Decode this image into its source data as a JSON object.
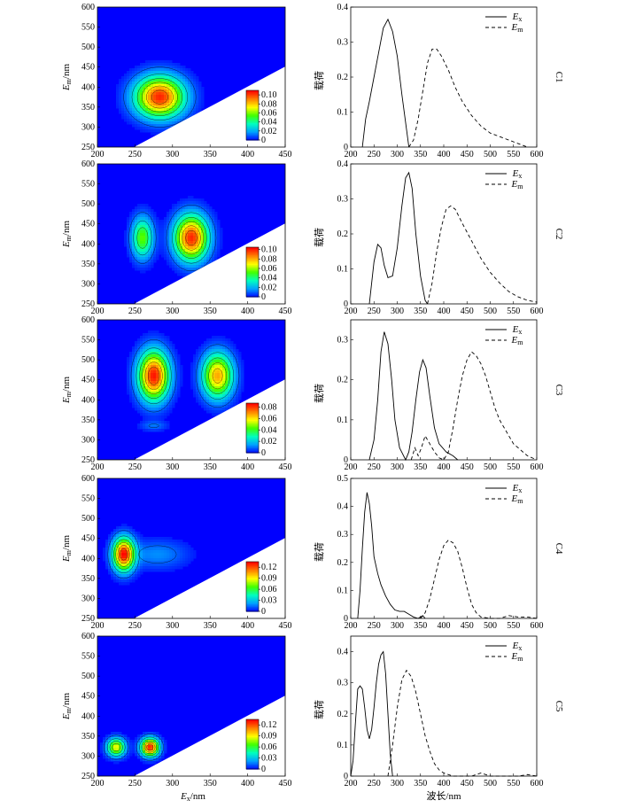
{
  "colors": {
    "background_blue": "#2040ff",
    "contour_line": "#000000"
  },
  "colorbar_stops": [
    "#0000ff",
    "#00a0ff",
    "#00ffc0",
    "#40ff00",
    "#ffff00",
    "#ff8000",
    "#ff0000"
  ],
  "panel_labels": [
    "C1",
    "C2",
    "C3",
    "C4",
    "C5"
  ],
  "labels": {
    "eem_xlabel": "Ex/nm",
    "eem_ylabel": "Em/nm",
    "loading_ylabel": "载荷",
    "loading_xlabel": "波长/nm"
  },
  "legend": {
    "ex": "Ex",
    "em": "Em"
  },
  "chart_data": [
    {
      "type": "heatmap",
      "name": "C1-eem",
      "xlim": [
        200,
        450
      ],
      "ylim": [
        250,
        600
      ],
      "xticks": [
        200,
        250,
        300,
        350,
        400,
        450
      ],
      "yticks": [
        250,
        300,
        350,
        400,
        450,
        500,
        550,
        600
      ],
      "colorbar": {
        "max": 0.11,
        "ticks": [
          "0",
          "0.02",
          "0.04",
          "0.06",
          "0.08",
          "0.10"
        ],
        "values": [
          0,
          0.02,
          0.04,
          0.06,
          0.08,
          0.1
        ]
      },
      "peaks": [
        {
          "ex": 283,
          "em": 375,
          "value": 0.105,
          "sx": 32,
          "sy": 50
        }
      ]
    },
    {
      "type": "line",
      "name": "C1-loading",
      "xlim": [
        200,
        600
      ],
      "ylim": [
        0,
        0.4
      ],
      "xticks": [
        200,
        250,
        300,
        350,
        400,
        450,
        500,
        550,
        600
      ],
      "yticks": [
        0,
        0.1,
        0.2,
        0.3,
        0.4
      ],
      "ytick_labels": [
        "0",
        "0.1",
        "0.2",
        "0.3",
        "0.4"
      ],
      "ex": {
        "x": [
          225,
          232,
          240,
          250,
          260,
          270,
          280,
          290,
          300,
          310,
          320,
          325
        ],
        "y": [
          0,
          0.08,
          0.13,
          0.2,
          0.27,
          0.34,
          0.365,
          0.33,
          0.26,
          0.15,
          0.05,
          0
        ]
      },
      "em": {
        "x": [
          325,
          335,
          345,
          355,
          365,
          375,
          385,
          395,
          410,
          425,
          440,
          460,
          480,
          500,
          520,
          540,
          560,
          580
        ],
        "y": [
          0,
          0.02,
          0.08,
          0.16,
          0.24,
          0.28,
          0.28,
          0.26,
          0.22,
          0.17,
          0.13,
          0.09,
          0.06,
          0.04,
          0.03,
          0.02,
          0.01,
          0
        ]
      }
    },
    {
      "type": "heatmap",
      "name": "C2-eem",
      "xlim": [
        200,
        450
      ],
      "ylim": [
        250,
        600
      ],
      "xticks": [
        200,
        250,
        300,
        350,
        400,
        450
      ],
      "yticks": [
        250,
        300,
        350,
        400,
        450,
        500,
        550,
        600
      ],
      "colorbar": {
        "max": 0.105,
        "ticks": [
          "0",
          "0.02",
          "0.04",
          "0.06",
          "0.08",
          "0.10"
        ],
        "values": [
          0,
          0.02,
          0.04,
          0.06,
          0.08,
          0.1
        ]
      },
      "peaks": [
        {
          "ex": 325,
          "em": 415,
          "value": 0.1,
          "sx": 22,
          "sy": 55
        },
        {
          "ex": 260,
          "em": 415,
          "value": 0.055,
          "sx": 14,
          "sy": 50
        }
      ]
    },
    {
      "type": "line",
      "name": "C2-loading",
      "xlim": [
        200,
        600
      ],
      "ylim": [
        0,
        0.4
      ],
      "xticks": [
        200,
        250,
        300,
        350,
        400,
        450,
        500,
        550,
        600
      ],
      "yticks": [
        0,
        0.1,
        0.2,
        0.3,
        0.4
      ],
      "ytick_labels": [
        "0",
        "0.1",
        "0.2",
        "0.3",
        "0.4"
      ],
      "ex": {
        "x": [
          240,
          245,
          250,
          258,
          265,
          272,
          280,
          290,
          300,
          310,
          318,
          325,
          332,
          340,
          350,
          360,
          365
        ],
        "y": [
          0,
          0.06,
          0.12,
          0.17,
          0.16,
          0.11,
          0.075,
          0.08,
          0.16,
          0.28,
          0.36,
          0.375,
          0.33,
          0.2,
          0.08,
          0.01,
          0
        ]
      },
      "em": {
        "x": [
          365,
          375,
          385,
          395,
          405,
          415,
          425,
          440,
          460,
          480,
          500,
          520,
          540,
          560,
          580,
          600
        ],
        "y": [
          0,
          0.06,
          0.15,
          0.22,
          0.27,
          0.28,
          0.27,
          0.23,
          0.18,
          0.13,
          0.09,
          0.06,
          0.035,
          0.02,
          0.01,
          0.005
        ]
      }
    },
    {
      "type": "heatmap",
      "name": "C3-eem",
      "xlim": [
        200,
        450
      ],
      "ylim": [
        250,
        600
      ],
      "xticks": [
        200,
        250,
        300,
        350,
        400,
        450
      ],
      "yticks": [
        250,
        300,
        350,
        400,
        450,
        500,
        550,
        600
      ],
      "colorbar": {
        "max": 0.087,
        "ticks": [
          "0",
          "0.02",
          "0.04",
          "0.06",
          "0.08"
        ],
        "values": [
          0,
          0.02,
          0.04,
          0.06,
          0.08
        ]
      },
      "peaks": [
        {
          "ex": 275,
          "em": 460,
          "value": 0.085,
          "sx": 20,
          "sy": 60
        },
        {
          "ex": 360,
          "em": 460,
          "value": 0.068,
          "sx": 20,
          "sy": 55
        },
        {
          "ex": 275,
          "em": 335,
          "value": 0.01,
          "sx": 18,
          "sy": 12
        }
      ]
    },
    {
      "type": "line",
      "name": "C3-loading",
      "xlim": [
        200,
        600
      ],
      "ylim": [
        0,
        0.35
      ],
      "xticks": [
        200,
        250,
        300,
        350,
        400,
        450,
        500,
        550,
        600
      ],
      "yticks": [
        0,
        0.1,
        0.2,
        0.3
      ],
      "ytick_labels": [
        "0",
        "0.1",
        "0.2",
        "0.3"
      ],
      "ex": {
        "x": [
          240,
          250,
          258,
          265,
          272,
          280,
          288,
          295,
          305,
          318,
          325,
          332,
          340,
          348,
          355,
          362,
          370,
          380,
          390,
          405,
          420,
          430
        ],
        "y": [
          0,
          0.05,
          0.15,
          0.27,
          0.32,
          0.29,
          0.2,
          0.1,
          0.03,
          0,
          0.02,
          0.07,
          0.15,
          0.22,
          0.25,
          0.23,
          0.16,
          0.08,
          0.04,
          0.02,
          0.01,
          0
        ]
      },
      "em": {
        "x": [
          330,
          338,
          345,
          352,
          360,
          370,
          380,
          390,
          400,
          410,
          420,
          430,
          440,
          450,
          460,
          470,
          480,
          490,
          500,
          510,
          520,
          530,
          540,
          550,
          560,
          570,
          580,
          590,
          600
        ],
        "y": [
          0,
          0.03,
          0.01,
          0.03,
          0.06,
          0.04,
          0.02,
          0.005,
          0,
          0.02,
          0.08,
          0.15,
          0.21,
          0.25,
          0.27,
          0.26,
          0.24,
          0.21,
          0.17,
          0.13,
          0.1,
          0.08,
          0.06,
          0.04,
          0.03,
          0.02,
          0.01,
          0.005,
          0
        ]
      }
    },
    {
      "type": "heatmap",
      "name": "C4-eem",
      "xlim": [
        200,
        450
      ],
      "ylim": [
        250,
        600
      ],
      "xticks": [
        200,
        250,
        300,
        350,
        400,
        450
      ],
      "yticks": [
        250,
        300,
        350,
        400,
        450,
        500,
        550,
        600
      ],
      "colorbar": {
        "max": 0.135,
        "ticks": [
          "0",
          "0.03",
          "0.06",
          "0.09",
          "0.12"
        ],
        "values": [
          0,
          0.03,
          0.06,
          0.09,
          0.12
        ]
      },
      "peaks": [
        {
          "ex": 235,
          "em": 410,
          "value": 0.13,
          "sx": 14,
          "sy": 40
        },
        {
          "ex": 280,
          "em": 410,
          "value": 0.02,
          "sx": 40,
          "sy": 35
        }
      ]
    },
    {
      "type": "line",
      "name": "C4-loading",
      "xlim": [
        200,
        600
      ],
      "ylim": [
        0,
        0.5
      ],
      "xticks": [
        200,
        250,
        300,
        350,
        400,
        450,
        500,
        550,
        600
      ],
      "yticks": [
        0,
        0.1,
        0.2,
        0.3,
        0.4,
        0.5
      ],
      "ytick_labels": [
        "0",
        "0.1",
        "0.2",
        "0.3",
        "0.4",
        "0.5"
      ],
      "ex": {
        "x": [
          215,
          220,
          225,
          230,
          235,
          240,
          245,
          250,
          258,
          265,
          275,
          285,
          295,
          305,
          315,
          325,
          335,
          345,
          355,
          360
        ],
        "y": [
          0,
          0.1,
          0.25,
          0.38,
          0.45,
          0.41,
          0.33,
          0.22,
          0.16,
          0.12,
          0.08,
          0.05,
          0.03,
          0.025,
          0.025,
          0.015,
          0.005,
          0,
          0.01,
          0
        ]
      },
      "em": {
        "x": [
          350,
          360,
          370,
          380,
          390,
          400,
          410,
          420,
          430,
          440,
          450,
          460,
          470,
          480,
          500,
          520,
          540,
          560,
          580,
          600
        ],
        "y": [
          0,
          0.02,
          0.07,
          0.14,
          0.21,
          0.26,
          0.28,
          0.27,
          0.24,
          0.18,
          0.11,
          0.05,
          0.02,
          0.005,
          0,
          0,
          0.01,
          0.005,
          0.005,
          0
        ]
      }
    },
    {
      "type": "heatmap",
      "name": "C5-eem",
      "xlim": [
        200,
        450
      ],
      "ylim": [
        250,
        600
      ],
      "xticks": [
        200,
        250,
        300,
        350,
        400,
        450
      ],
      "yticks": [
        250,
        300,
        350,
        400,
        450,
        500,
        550,
        600
      ],
      "colorbar": {
        "max": 0.135,
        "ticks": [
          "0",
          "0.03",
          "0.06",
          "0.09",
          "0.12"
        ],
        "values": [
          0,
          0.03,
          0.06,
          0.09,
          0.12
        ]
      },
      "peaks": [
        {
          "ex": 225,
          "em": 322,
          "value": 0.09,
          "sx": 12,
          "sy": 22
        },
        {
          "ex": 270,
          "em": 322,
          "value": 0.13,
          "sx": 12,
          "sy": 22
        }
      ]
    },
    {
      "type": "line",
      "name": "C5-loading",
      "xlim": [
        200,
        600
      ],
      "ylim": [
        0,
        0.45
      ],
      "xticks": [
        200,
        250,
        300,
        350,
        400,
        450,
        500,
        550,
        600
      ],
      "yticks": [
        0,
        0.1,
        0.2,
        0.3,
        0.4
      ],
      "ytick_labels": [
        "0",
        "0.1",
        "0.2",
        "0.3",
        "0.4"
      ],
      "ex": {
        "x": [
          200,
          205,
          210,
          215,
          220,
          225,
          230,
          235,
          240,
          245,
          250,
          255,
          260,
          265,
          270,
          275,
          280,
          285,
          290
        ],
        "y": [
          0,
          0.05,
          0.17,
          0.28,
          0.29,
          0.28,
          0.22,
          0.15,
          0.12,
          0.15,
          0.22,
          0.3,
          0.36,
          0.39,
          0.4,
          0.33,
          0.2,
          0.07,
          0
        ]
      },
      "em": {
        "x": [
          280,
          290,
          300,
          310,
          320,
          330,
          340,
          350,
          360,
          370,
          380,
          390,
          400,
          420,
          440,
          460,
          480,
          500,
          520,
          540,
          560,
          580,
          600
        ],
        "y": [
          0,
          0.1,
          0.22,
          0.31,
          0.34,
          0.32,
          0.27,
          0.2,
          0.13,
          0.08,
          0.04,
          0.02,
          0.01,
          0,
          0,
          0,
          0.01,
          0,
          0,
          0,
          0,
          0.005,
          0
        ]
      }
    }
  ]
}
